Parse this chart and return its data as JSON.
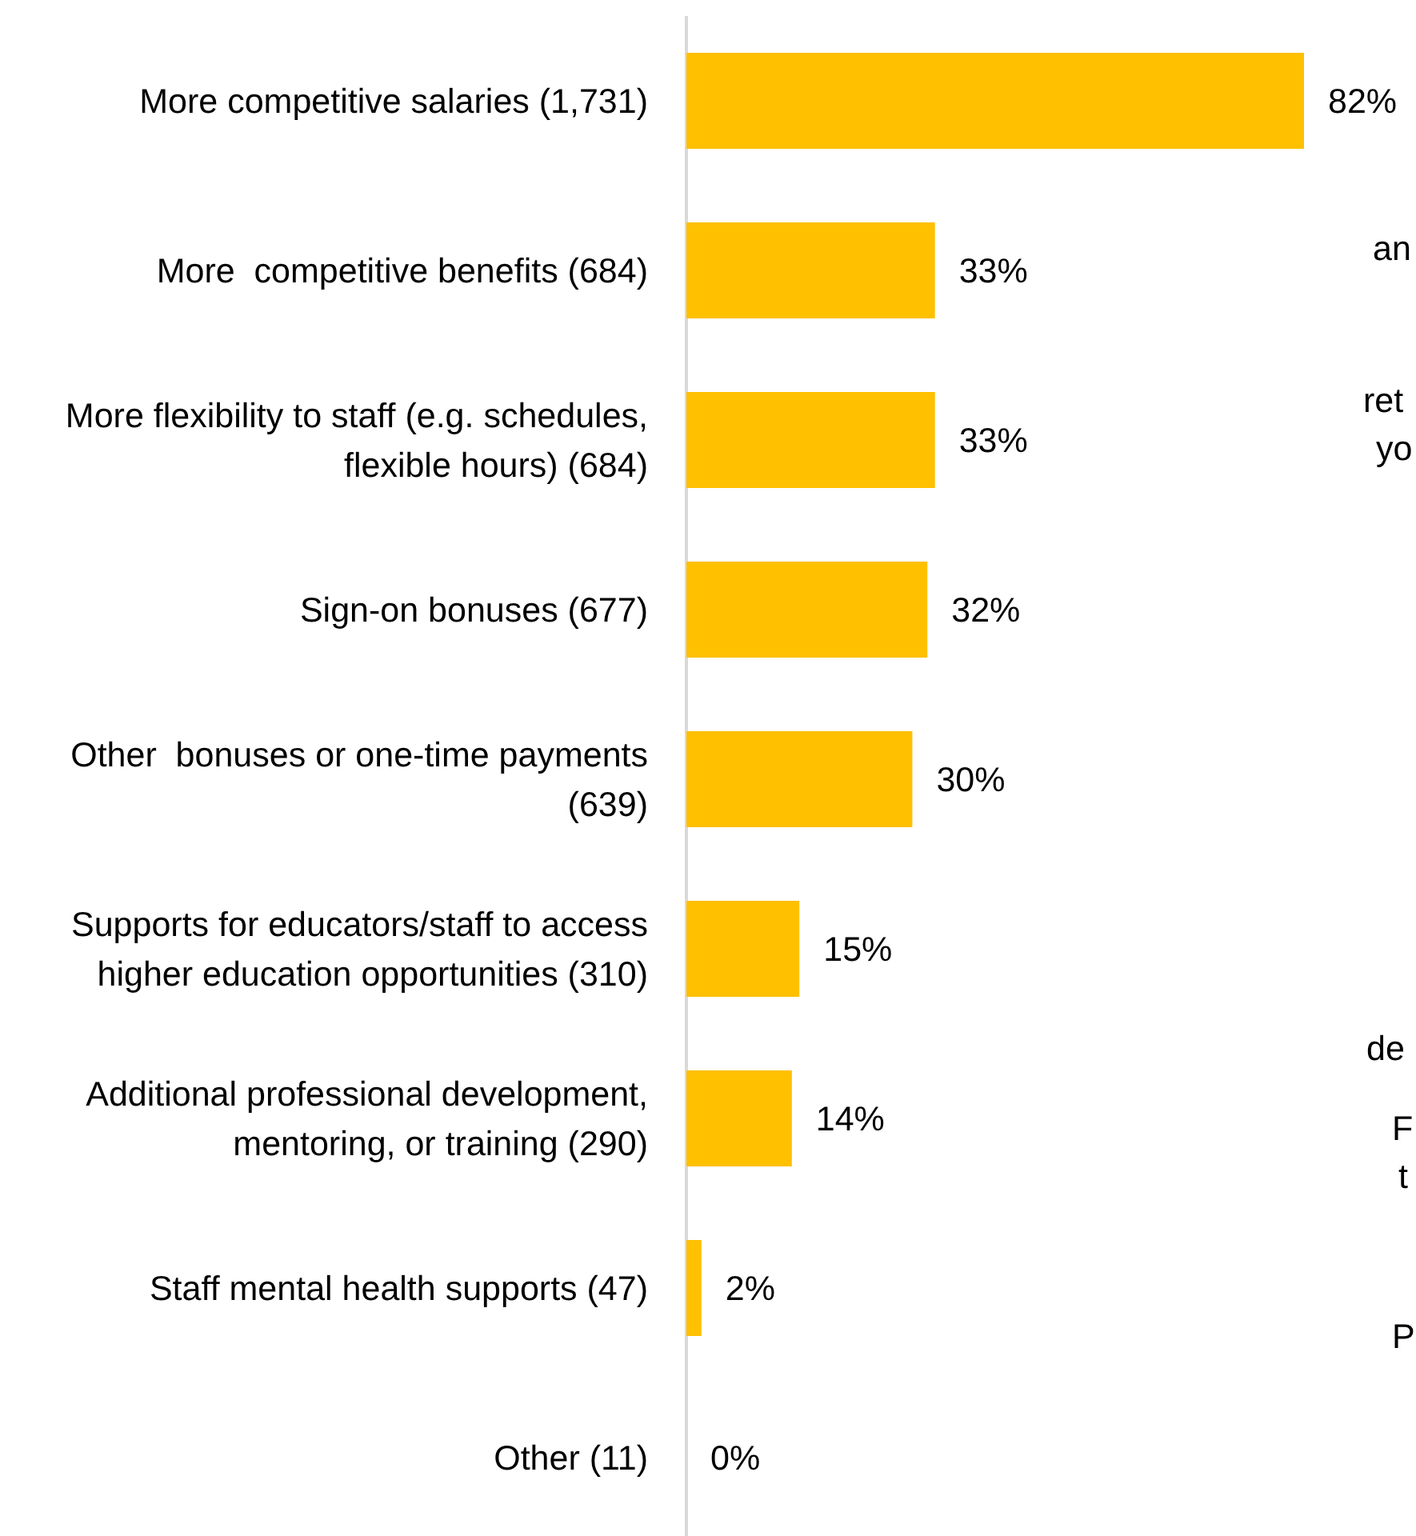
{
  "chart_data": {
    "type": "bar",
    "orientation": "horizontal",
    "categories": [
      "More competitive salaries (1,731)",
      "More  competitive benefits (684)",
      "More flexibility to staff (e.g. schedules, flexible hours) (684)",
      "Sign-on bonuses (677)",
      "Other  bonuses or one-time payments (639)",
      "Supports for educators/staff to access higher education opportunities (310)",
      "Additional professional development, mentoring, or training (290)",
      "Staff mental health supports (47)",
      "Other (11)"
    ],
    "values": [
      82,
      33,
      33,
      32,
      30,
      15,
      14,
      2,
      0
    ],
    "value_labels": [
      "82%",
      "33%",
      "33%",
      "32%",
      "30%",
      "15%",
      "14%",
      "2%",
      "0%"
    ],
    "color": "#ffc000",
    "annotations": [
      "an",
      "ret",
      "yo",
      "de",
      "F",
      "t",
      "P"
    ]
  }
}
